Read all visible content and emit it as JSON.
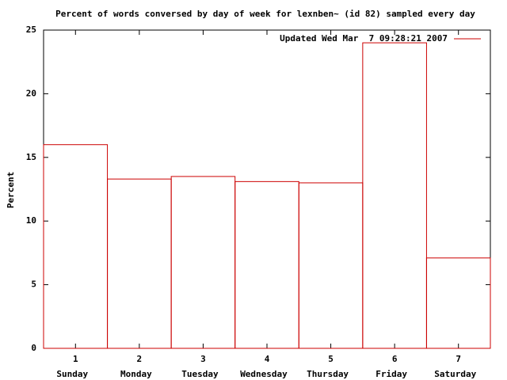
{
  "chart_data": {
    "type": "bar",
    "title": "Percent of words conversed by day of week for lexnben~ (id 82) sampled every day",
    "y_label": "Percent",
    "x": [
      1,
      2,
      3,
      4,
      5,
      6,
      7
    ],
    "categories": [
      "Sunday",
      "Monday",
      "Tuesday",
      "Wednesday",
      "Thursday",
      "Friday",
      "Saturday"
    ],
    "series": [
      {
        "name": "Updated Wed Mar  7 09:28:21 2007",
        "color": "#cc0000",
        "values": [
          16,
          13.3,
          13.5,
          13.1,
          13.0,
          24,
          7.1
        ]
      }
    ],
    "xlim": [
      0.5,
      7.5
    ],
    "xticks": [
      1,
      2,
      3,
      4,
      5,
      6,
      7
    ],
    "ylim": [
      0,
      25
    ],
    "yticks": [
      0,
      5,
      10,
      15,
      20,
      25
    ],
    "legend": "top-right"
  }
}
